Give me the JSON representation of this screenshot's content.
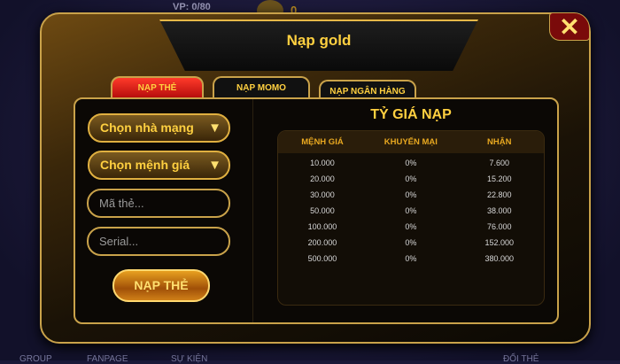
{
  "background": {
    "vp": "VP: 0/80",
    "coins": "0",
    "bottom_labels": [
      "GROUP",
      "FANPAGE",
      "SỰ KIỆN",
      "ĐỔI THẺ"
    ]
  },
  "modal": {
    "title": "Nạp gold",
    "close_icon": "close-x-icon",
    "tabs": [
      {
        "label": "NẠP THẺ",
        "active": true
      },
      {
        "label": "NẠP MOMO",
        "active": false
      },
      {
        "label": "NẠP NGÂN HÀNG",
        "active": false
      }
    ],
    "form": {
      "carrier_select": "Chọn nhà mạng",
      "value_select": "Chọn mệnh giá",
      "card_code_placeholder": "Mã thẻ...",
      "serial_placeholder": "Serial...",
      "submit_label": "NẠP THẺ"
    },
    "rates": {
      "title": "TỶ GIÁ NẠP",
      "headers": [
        "MỆNH GIÁ",
        "KHUYẾN MẠI",
        "NHẬN"
      ],
      "rows": [
        [
          "10.000",
          "0%",
          "7.600"
        ],
        [
          "20.000",
          "0%",
          "15.200"
        ],
        [
          "30.000",
          "0%",
          "22.800"
        ],
        [
          "50.000",
          "0%",
          "38.000"
        ],
        [
          "100.000",
          "0%",
          "76.000"
        ],
        [
          "200.000",
          "0%",
          "152.000"
        ],
        [
          "500.000",
          "0%",
          "380.000"
        ]
      ]
    }
  },
  "colors": {
    "accent": "#ffd040",
    "border": "#c9a24a",
    "active_tab": "#d01a10"
  }
}
